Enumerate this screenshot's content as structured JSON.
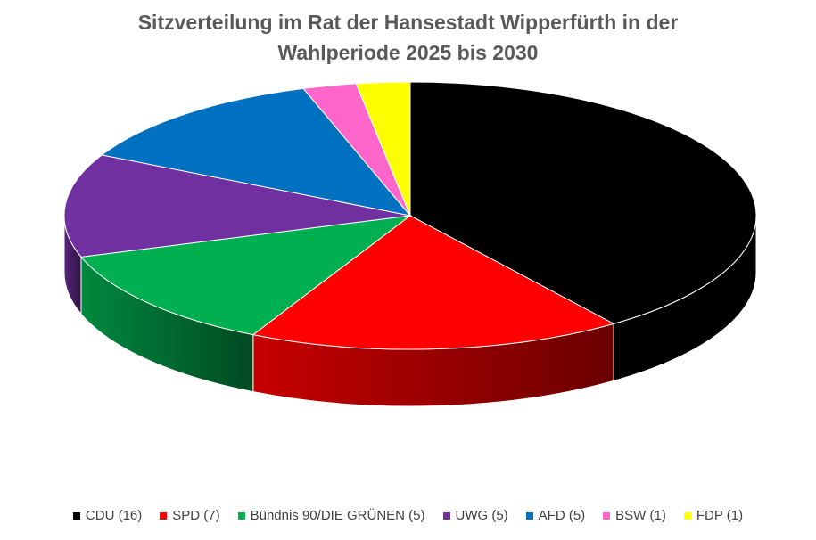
{
  "chart_data": {
    "type": "pie",
    "title": "Sitzverteilung im Rat der Hansestadt Wipperfürth in der\nWahlperiode 2025 bis 2030",
    "categories": [
      "CDU (16)",
      "SPD (7)",
      "Bündnis 90/DIE GRÜNEN (5)",
      "UWG (5)",
      "AFD (5)",
      "BSW (1)",
      "FDP (1)"
    ],
    "values": [
      16,
      7,
      5,
      5,
      5,
      1,
      1
    ],
    "colors": [
      "#000000",
      "#ff0000",
      "#00b050",
      "#7030a0",
      "#0070c0",
      "#ff66cc",
      "#ffff00"
    ],
    "legend": "bottom",
    "style": "3d"
  }
}
